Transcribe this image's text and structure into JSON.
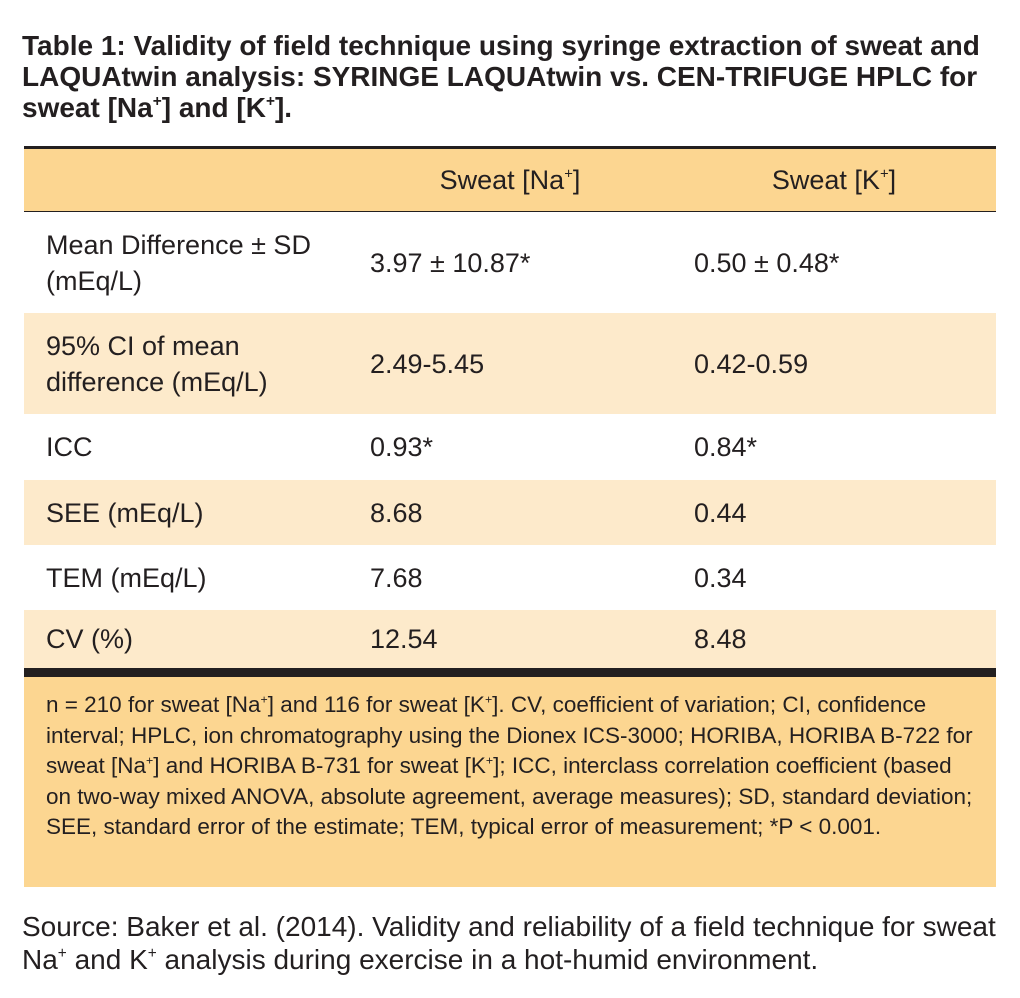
{
  "title": "Table 1: Validity of field technique using syringe extraction of sweat and LAQUAtwin analysis: SYRINGE LAQUAtwin vs. CEN-TRIFUGE HPLC for sweat [Na+] and [K+].",
  "header": {
    "col1": "",
    "col2": "Sweat [Na+]",
    "col3": "Sweat [K+]"
  },
  "rows": [
    {
      "label": "Mean Difference ± SD (mEq/L)",
      "na": "3.97 ± 10.87*",
      "k": "0.50 ± 0.48*"
    },
    {
      "label": "95% CI of mean difference (mEq/L)",
      "na": "2.49-5.45",
      "k": "0.42-0.59"
    },
    {
      "label": "ICC",
      "na": "0.93*",
      "k": "0.84*"
    },
    {
      "label": "SEE (mEq/L)",
      "na": "8.68",
      "k": "0.44"
    },
    {
      "label": "TEM (mEq/L)",
      "na": "7.68",
      "k": "0.34"
    },
    {
      "label": "CV (%)",
      "na": "12.54",
      "k": "8.48"
    }
  ],
  "footnote": "n = 210 for sweat [Na+] and 116 for sweat [K+]. CV, coefficient of variation; CI, confidence interval; HPLC, ion chromatography using the Dionex ICS-3000; HORIBA, HORIBA B-722 for sweat [Na+] and HORIBA B-731 for sweat [K+]; ICC, interclass correlation coefficient (based on two-way mixed ANOVA, absolute agreement, average measures); SD, standard deviation; SEE, standard error of the estimate; TEM, typical error of measurement; *P < 0.001.",
  "source": "Source: Baker et al. (2014). Validity and reliability of a field technique for sweat Na+ and K+ analysis during exercise in a hot-humid environment.",
  "colors": {
    "header_fill": "#fcd691",
    "row_shade": "#fdeacb",
    "text": "#231f20"
  }
}
